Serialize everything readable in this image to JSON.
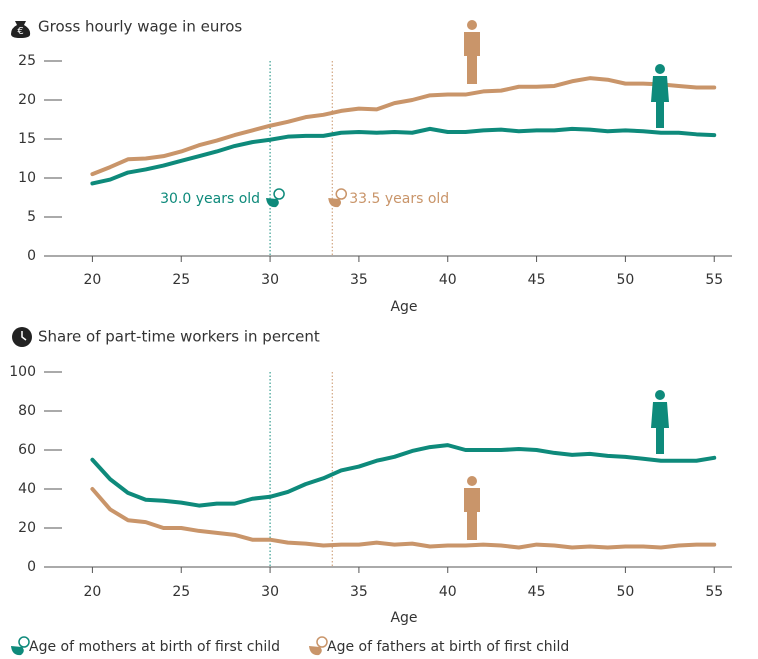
{
  "chart_data": [
    {
      "type": "line",
      "title": "Gross hourly wage in euros",
      "xlabel": "Age",
      "x": [
        20,
        21,
        22,
        23,
        24,
        25,
        26,
        27,
        28,
        29,
        30,
        31,
        32,
        33,
        34,
        35,
        36,
        37,
        38,
        39,
        40,
        41,
        42,
        43,
        44,
        45,
        46,
        47,
        48,
        49,
        50,
        51,
        52,
        53,
        54,
        55
      ],
      "xlim": [
        17.5,
        56
      ],
      "xticks": [
        20,
        25,
        30,
        35,
        40,
        45,
        50,
        55
      ],
      "ylim": [
        0,
        25
      ],
      "yticks": [
        0,
        5,
        10,
        15,
        20,
        25
      ],
      "series": [
        {
          "color": "#0e8a7b",
          "values": [
            9.3,
            9.8,
            10.7,
            11.1,
            11.6,
            12.2,
            12.8,
            13.4,
            14.1,
            14.6,
            14.9,
            15.3,
            15.4,
            15.4,
            15.8,
            15.9,
            15.8,
            15.9,
            15.8,
            16.3,
            15.9,
            15.9,
            16.1,
            16.2,
            16.0,
            16.1,
            16.1,
            16.3,
            16.2,
            16.0,
            16.1,
            16.0,
            15.8,
            15.8,
            15.6,
            15.5
          ]
        },
        {
          "color": "#c9956a",
          "values": [
            10.5,
            11.4,
            12.4,
            12.5,
            12.8,
            13.4,
            14.2,
            14.8,
            15.5,
            16.1,
            16.7,
            17.2,
            17.8,
            18.1,
            18.6,
            18.9,
            18.8,
            19.6,
            20.0,
            20.6,
            20.7,
            20.7,
            21.1,
            21.2,
            21.7,
            21.7,
            21.8,
            22.4,
            22.8,
            22.6,
            22.1,
            22.1,
            22.0,
            21.8,
            21.6,
            21.6
          ]
        }
      ]
    },
    {
      "type": "line",
      "title": "Share of part-time workers in percent",
      "xlabel": "Age",
      "x": [
        20,
        21,
        22,
        23,
        24,
        25,
        26,
        27,
        28,
        29,
        30,
        31,
        32,
        33,
        34,
        35,
        36,
        37,
        38,
        39,
        40,
        41,
        42,
        43,
        44,
        45,
        46,
        47,
        48,
        49,
        50,
        51,
        52,
        53,
        54,
        55
      ],
      "xlim": [
        17.5,
        56
      ],
      "xticks": [
        20,
        25,
        30,
        35,
        40,
        45,
        50,
        55
      ],
      "ylim": [
        0,
        100
      ],
      "yticks": [
        0,
        20,
        40,
        60,
        80,
        100
      ],
      "series": [
        {
          "color": "#0e8a7b",
          "values": [
            55,
            45,
            38,
            34.5,
            34,
            33,
            31.5,
            32.5,
            32.5,
            35,
            36,
            38.5,
            42.5,
            45.5,
            49.5,
            51.5,
            54.5,
            56.5,
            59.5,
            61.5,
            62.5,
            60,
            60,
            60,
            60.5,
            60,
            58.5,
            57.5,
            58,
            57,
            56.5,
            55.5,
            54.5,
            54.5,
            54.5,
            56
          ]
        },
        {
          "color": "#c9956a",
          "values": [
            40,
            29.5,
            24,
            23,
            20,
            20,
            18.5,
            17.5,
            16.5,
            14,
            14,
            12.5,
            12,
            11,
            11.5,
            11.5,
            12.5,
            11.5,
            12,
            10.5,
            11,
            11,
            11.5,
            11,
            10,
            11.5,
            11,
            10,
            10.5,
            10,
            10.5,
            10.5,
            10,
            11,
            11.5,
            11.5
          ]
        }
      ]
    }
  ],
  "birth_ages": [
    {
      "value": 30.0,
      "label": "30.0 years old",
      "legend": "Age of mothers at birth of first child",
      "color": "#0e8a7b"
    },
    {
      "value": 33.5,
      "label": "33.5 years old",
      "legend": "Age of fathers at birth of first child",
      "color": "#c9956a"
    }
  ]
}
